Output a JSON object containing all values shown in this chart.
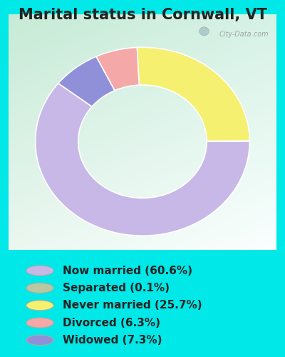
{
  "title": "Marital status in Cornwall, VT",
  "slices": [
    60.6,
    7.3,
    6.3,
    25.7,
    0.1
  ],
  "labels": [
    "Now married (60.6%)",
    "Separated (0.1%)",
    "Never married (25.7%)",
    "Divorced (6.3%)",
    "Widowed (7.3%)"
  ],
  "legend_colors": [
    "#c8b8e8",
    "#b8c8a0",
    "#f5f070",
    "#f5a8a8",
    "#9090d8"
  ],
  "slice_colors": [
    "#c8b8e8",
    "#9090d8",
    "#f5a8a8",
    "#f5f070",
    "#b8c8a0"
  ],
  "bg_outer": "#00e8e8",
  "watermark": "City-Data.com",
  "title_fontsize": 15,
  "legend_fontsize": 11,
  "chart_border_color": "#cccccc"
}
